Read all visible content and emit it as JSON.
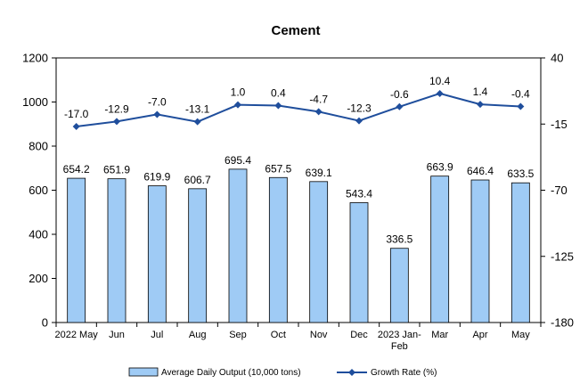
{
  "chart_data": {
    "type": "bar",
    "title": "Cement",
    "categories": [
      [
        "2022 May"
      ],
      [
        "Jun"
      ],
      [
        "Jul"
      ],
      [
        "Aug"
      ],
      [
        "Sep"
      ],
      [
        "Oct"
      ],
      [
        "Nov"
      ],
      [
        "Dec"
      ],
      [
        "2023 Jan-",
        "Feb"
      ],
      [
        "Mar"
      ],
      [
        "Apr"
      ],
      [
        "May"
      ]
    ],
    "series": [
      {
        "name": "Average Daily Output (10,000 tons)",
        "type": "bar",
        "axis": "left",
        "values": [
          654.2,
          651.9,
          619.9,
          606.7,
          695.4,
          657.5,
          639.1,
          543.4,
          336.5,
          663.9,
          646.4,
          633.5
        ],
        "labels": [
          "654.2",
          "651.9",
          "619.9",
          "606.7",
          "695.4",
          "657.5",
          "639.1",
          "543.4",
          "336.5",
          "663.9",
          "646.4",
          "633.5"
        ]
      },
      {
        "name": "Growth Rate (%)",
        "type": "line",
        "axis": "right",
        "values": [
          -17.0,
          -12.9,
          -7.0,
          -13.1,
          1.0,
          0.4,
          -4.7,
          -12.3,
          -0.6,
          10.4,
          1.4,
          -0.4
        ],
        "labels": [
          "-17.0",
          "-12.9",
          "-7.0",
          "-13.1",
          "1.0",
          "0.4",
          "-4.7",
          "-12.3",
          "-0.6",
          "10.4",
          "1.4",
          "-0.4"
        ]
      }
    ],
    "y_left": {
      "min": 0,
      "max": 1200,
      "ticks": [
        "0",
        "200",
        "400",
        "600",
        "800",
        "1000",
        "1200"
      ]
    },
    "y_right": {
      "min": -180,
      "max": 40,
      "ticks": [
        "-180",
        "-125",
        "-70",
        "-15",
        "40"
      ]
    },
    "grid": false,
    "legend_position": "bottom",
    "colors": {
      "bar_fill": "#9FCBF5",
      "bar_stroke": "#000000",
      "line": "#1F4E9C",
      "axis": "#000000"
    }
  }
}
